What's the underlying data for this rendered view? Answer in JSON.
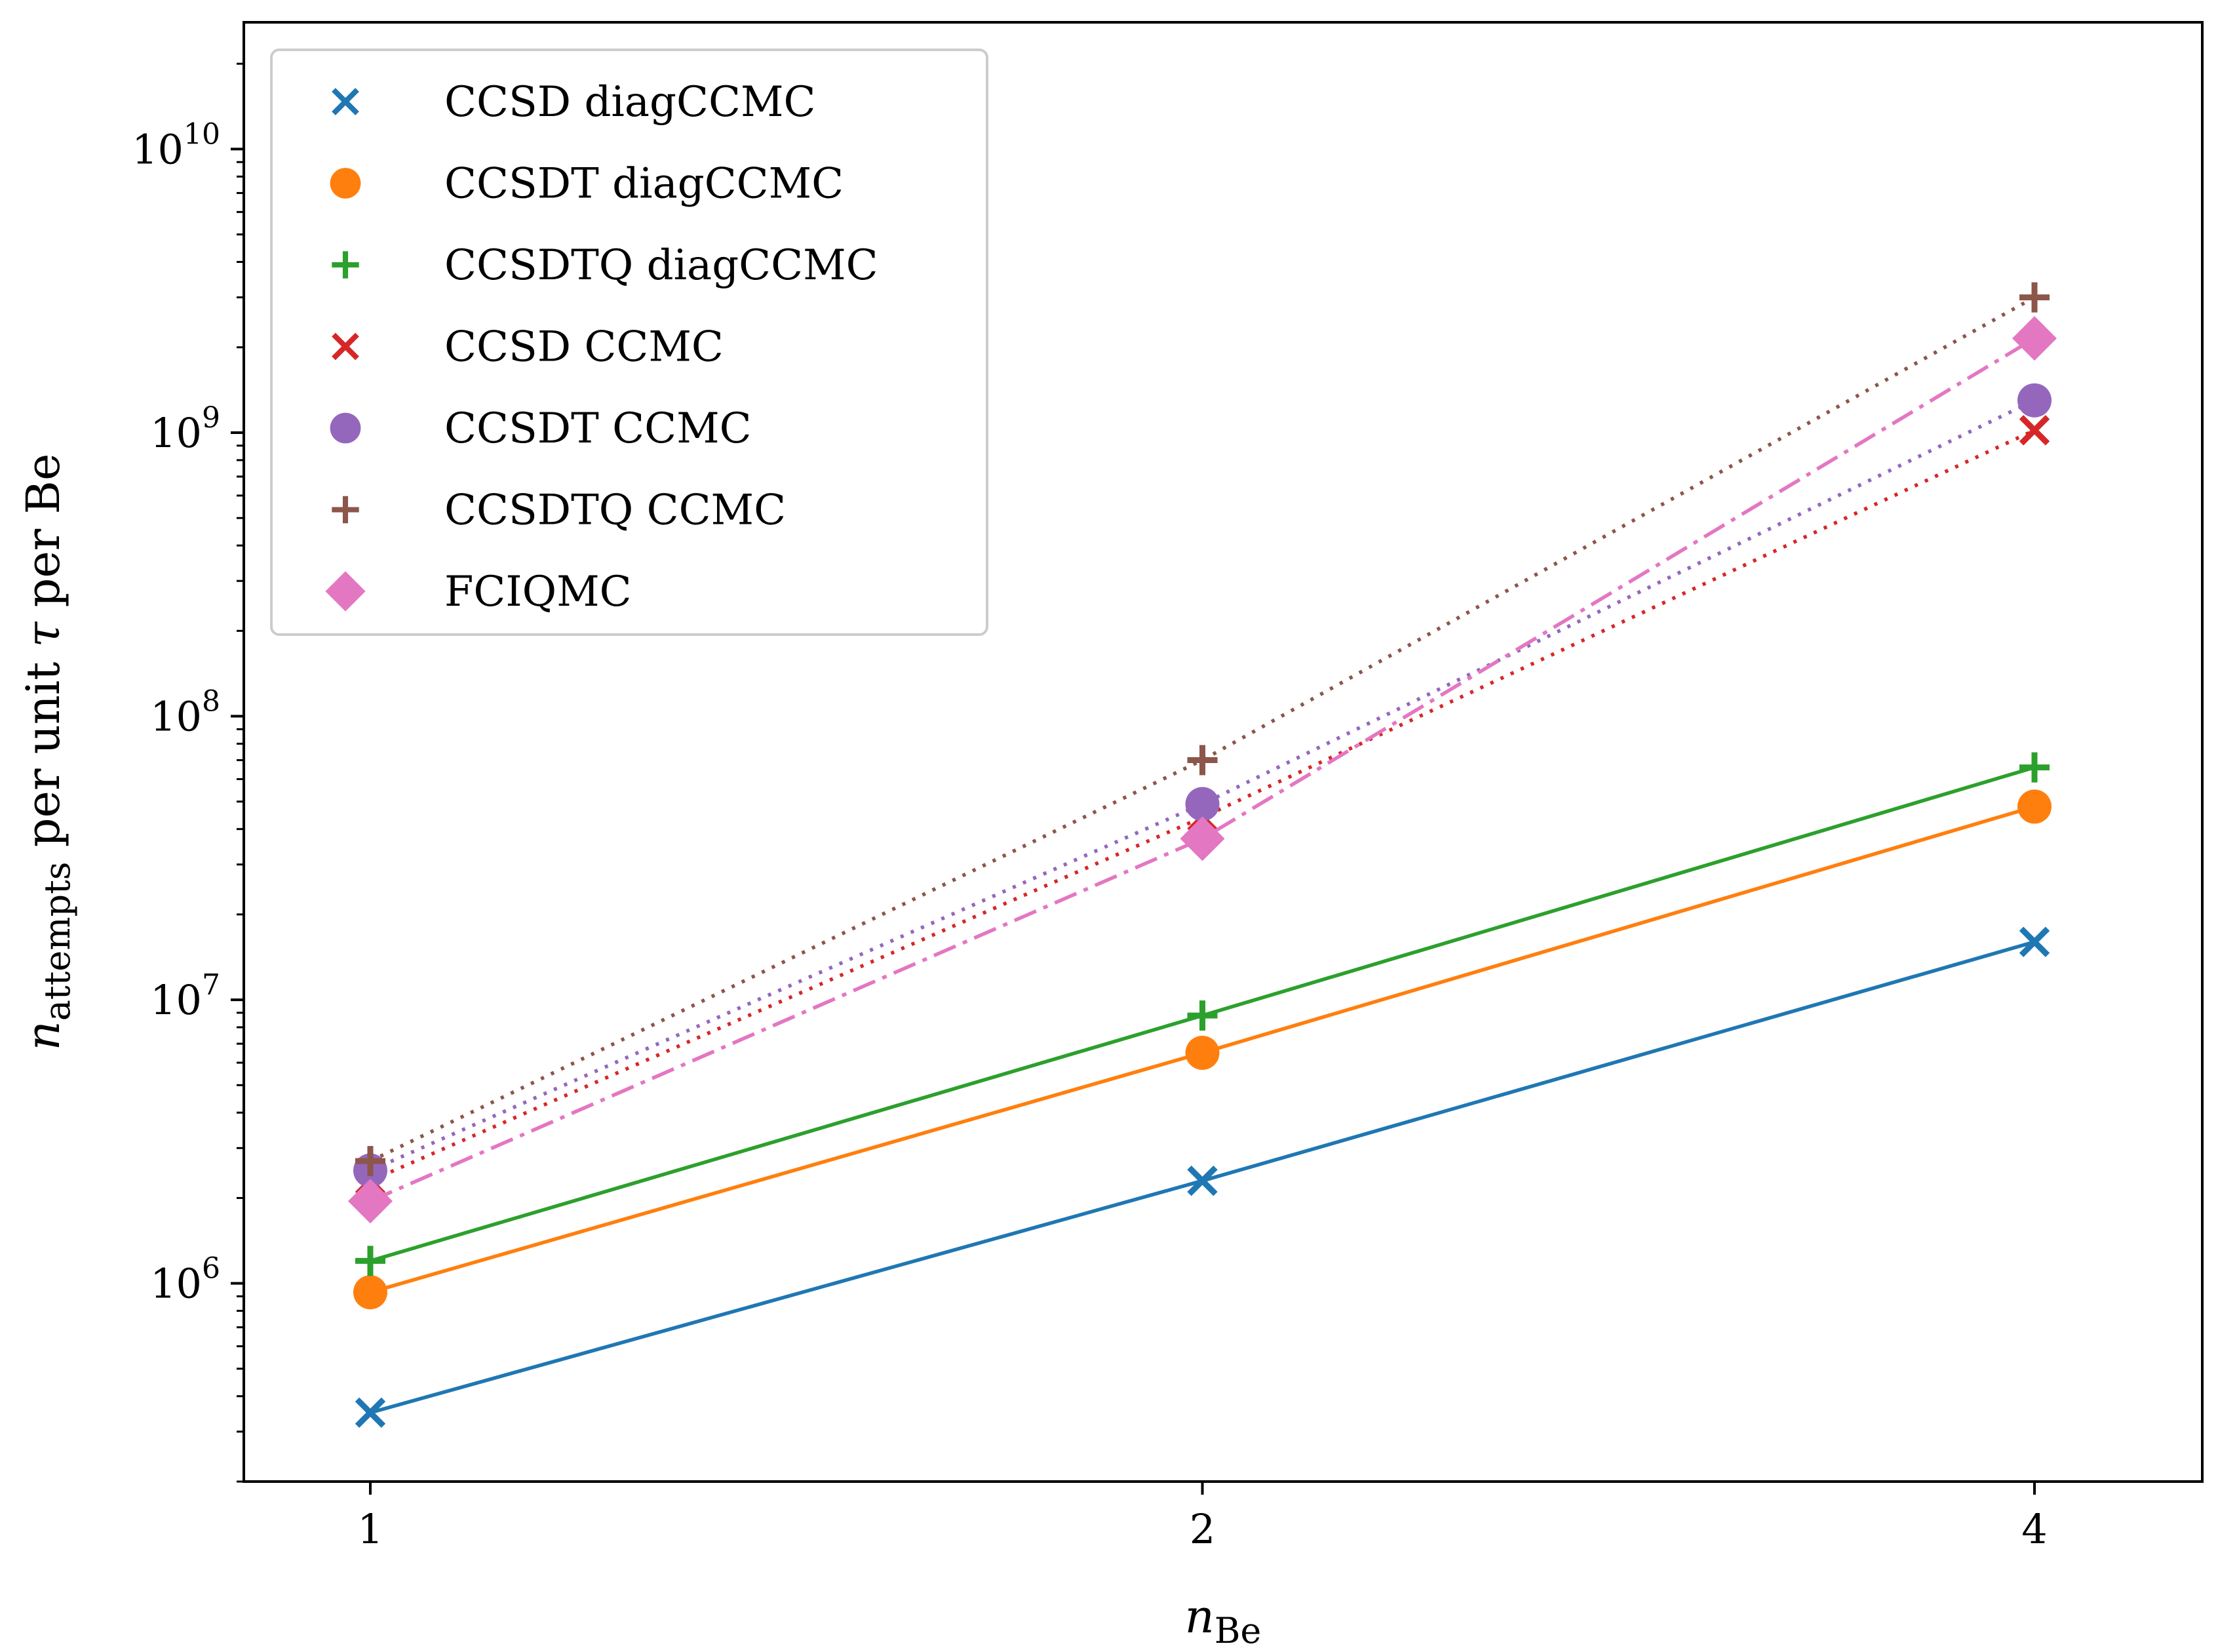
{
  "chart_data": {
    "type": "line",
    "x_scale": "log2",
    "y_scale": "log",
    "xlabel": "n",
    "xlabel_sub": "Be",
    "ylabel_n": "n",
    "ylabel_sub": "attempts",
    "ylabel_rest_a": " per unit ",
    "ylabel_tau": "τ",
    "ylabel_rest_b": " per Be",
    "x": [
      1,
      2,
      4
    ],
    "x_ticks": [
      "1",
      "2",
      "4"
    ],
    "y_ticks": [
      {
        "value": 1000000.0,
        "base": "10",
        "exp": "6"
      },
      {
        "value": 10000000.0,
        "base": "10",
        "exp": "7"
      },
      {
        "value": 100000000.0,
        "base": "10",
        "exp": "8"
      },
      {
        "value": 1000000000.0,
        "base": "10",
        "exp": "9"
      },
      {
        "value": 10000000000.0,
        "base": "10",
        "exp": "10"
      }
    ],
    "xlim": [
      0.9,
      4.6
    ],
    "ylim": [
      200000,
      28000000000
    ],
    "legend_position": "top-left",
    "series": [
      {
        "name": "CCSD diagCCMC",
        "values": [
          350000,
          2300000,
          16000000
        ],
        "color": "#1f77b4",
        "marker": "x",
        "line": "solid"
      },
      {
        "name": "CCSDT diagCCMC",
        "values": [
          930000,
          6500000,
          48000000
        ],
        "color": "#ff7f0e",
        "marker": "circle",
        "line": "solid"
      },
      {
        "name": "CCSDTQ diagCCMC",
        "values": [
          1200000,
          8800000,
          66000000
        ],
        "color": "#2ca02c",
        "marker": "plus",
        "line": "solid"
      },
      {
        "name": "CCSD CCMC",
        "values": [
          2300000,
          44000000,
          1020000000
        ],
        "color": "#d62728",
        "marker": "x",
        "line": "dotted"
      },
      {
        "name": "CCSDT CCMC",
        "values": [
          2500000,
          49000000,
          1300000000
        ],
        "color": "#9467bd",
        "marker": "circle",
        "line": "dotted"
      },
      {
        "name": "CCSDTQ CCMC",
        "values": [
          2700000,
          70000000,
          3000000000
        ],
        "color": "#8c564b",
        "marker": "plus",
        "line": "dotted"
      },
      {
        "name": "FCIQMC",
        "values": [
          1950000,
          37000000,
          2150000000
        ],
        "color": "#e377c2",
        "marker": "diamond",
        "line": "dashdot"
      }
    ]
  }
}
